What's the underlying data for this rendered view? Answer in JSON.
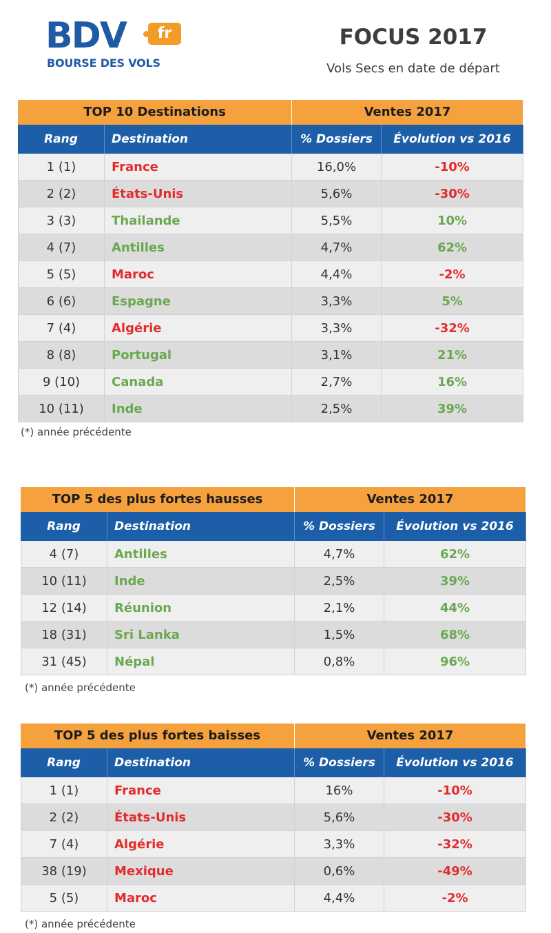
{
  "logo": {
    "main": "BDV",
    "suffix": "fr",
    "tagline": "BOURSE DES VOLS"
  },
  "header": {
    "title": "FOCUS 2017",
    "subtitle": "Vols Secs en date de départ"
  },
  "colors": {
    "up": "#6aa84f",
    "down": "#e32b2b",
    "orange": "#f4a13e",
    "blue": "#1c5ea8"
  },
  "columns": {
    "rang": "Rang",
    "destination": "Destination",
    "dossiers": "% Dossiers",
    "evolution": "Évolution vs 2016"
  },
  "tables": [
    {
      "title": "TOP 10 Destinations",
      "sales": "Ventes 2017",
      "note": "(*) année précédente",
      "rows": [
        {
          "rang": "1 (1)",
          "destination": "France",
          "dossiers": "16,0%",
          "evolution": "-10%",
          "trend": "down"
        },
        {
          "rang": "2 (2)",
          "destination": "États-Unis",
          "dossiers": "5,6%",
          "evolution": "-30%",
          "trend": "down"
        },
        {
          "rang": "3 (3)",
          "destination": "Thailande",
          "dossiers": "5,5%",
          "evolution": "10%",
          "trend": "up"
        },
        {
          "rang": "4 (7)",
          "destination": "Antilles",
          "dossiers": "4,7%",
          "evolution": "62%",
          "trend": "up"
        },
        {
          "rang": "5 (5)",
          "destination": "Maroc",
          "dossiers": "4,4%",
          "evolution": "-2%",
          "trend": "down"
        },
        {
          "rang": "6 (6)",
          "destination": "Espagne",
          "dossiers": "3,3%",
          "evolution": "5%",
          "trend": "up"
        },
        {
          "rang": "7 (4)",
          "destination": "Algérie",
          "dossiers": "3,3%",
          "evolution": "-32%",
          "trend": "down"
        },
        {
          "rang": "8 (8)",
          "destination": "Portugal",
          "dossiers": "3,1%",
          "evolution": "21%",
          "trend": "up"
        },
        {
          "rang": "9 (10)",
          "destination": "Canada",
          "dossiers": "2,7%",
          "evolution": "16%",
          "trend": "up"
        },
        {
          "rang": "10 (11)",
          "destination": "Inde",
          "dossiers": "2,5%",
          "evolution": "39%",
          "trend": "up"
        }
      ]
    },
    {
      "title": "TOP 5 des plus fortes hausses",
      "sales": "Ventes 2017",
      "note": "(*) année précédente",
      "rows": [
        {
          "rang": "4 (7)",
          "destination": "Antilles",
          "dossiers": "4,7%",
          "evolution": "62%",
          "trend": "up"
        },
        {
          "rang": "10 (11)",
          "destination": "Inde",
          "dossiers": "2,5%",
          "evolution": "39%",
          "trend": "up"
        },
        {
          "rang": "12 (14)",
          "destination": "Réunion",
          "dossiers": "2,1%",
          "evolution": "44%",
          "trend": "up"
        },
        {
          "rang": "18 (31)",
          "destination": "Sri Lanka",
          "dossiers": "1,5%",
          "evolution": "68%",
          "trend": "up"
        },
        {
          "rang": "31 (45)",
          "destination": "Népal",
          "dossiers": "0,8%",
          "evolution": "96%",
          "trend": "up"
        }
      ]
    },
    {
      "title": "TOP 5 des plus fortes baisses",
      "sales": "Ventes 2017",
      "note": "(*) année précédente",
      "rows": [
        {
          "rang": "1 (1)",
          "destination": "France",
          "dossiers": "16%",
          "evolution": "-10%",
          "trend": "down"
        },
        {
          "rang": "2 (2)",
          "destination": "États-Unis",
          "dossiers": "5,6%",
          "evolution": "-30%",
          "trend": "down"
        },
        {
          "rang": "7 (4)",
          "destination": "Algérie",
          "dossiers": "3,3%",
          "evolution": "-32%",
          "trend": "down"
        },
        {
          "rang": "38 (19)",
          "destination": "Mexique",
          "dossiers": "0,6%",
          "evolution": "-49%",
          "trend": "down"
        },
        {
          "rang": "5 (5)",
          "destination": "Maroc",
          "dossiers": "4,4%",
          "evolution": "-2%",
          "trend": "down"
        }
      ]
    }
  ]
}
